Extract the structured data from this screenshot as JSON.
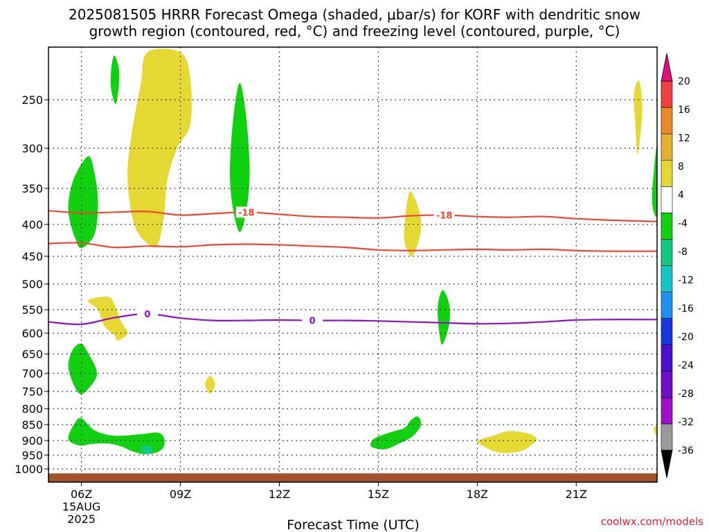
{
  "chart_data": {
    "type": "time-height cross section",
    "title_line1": "2025081505 HRRR Forecast Omega (shaded, μbar/s) for KORF with dendritic snow",
    "title_line2": "growth region (contoured, red, °C) and freezing level (contoured, purple, °C)",
    "xlabel": "Forecast Time (UTC)",
    "credit": "coolwx.com/models",
    "x_ticks": [
      {
        "hour": 6,
        "label": "06Z",
        "sub1": "15AUG",
        "sub2": "2025"
      },
      {
        "hour": 9,
        "label": "09Z"
      },
      {
        "hour": 12,
        "label": "12Z"
      },
      {
        "hour": 15,
        "label": "15Z"
      },
      {
        "hour": 18,
        "label": "18Z"
      },
      {
        "hour": 21,
        "label": "21Z"
      }
    ],
    "x_range": [
      5.0,
      23.45
    ],
    "y_ticks": [
      250,
      300,
      350,
      400,
      450,
      500,
      550,
      600,
      650,
      700,
      750,
      800,
      850,
      900,
      950,
      1000
    ],
    "y_range": [
      200,
      1030
    ],
    "colorbar": {
      "labels": [
        "20",
        "16",
        "12",
        "8",
        "4",
        "-4",
        "-8",
        "-12",
        "-16",
        "-20",
        "-24",
        "-28",
        "-32",
        "-36"
      ],
      "colors": [
        "#e8e8e8",
        "#9a9a9a",
        "#a010c8",
        "#7010c8",
        "#5010d0",
        "#1838e0",
        "#2090f0",
        "#10c8c8",
        "#10c880",
        "#10d010",
        "#ffffff",
        "#e6d832",
        "#e6b030",
        "#e88a28",
        "#f04040"
      ],
      "top_color": "#e0107a",
      "bottom_color": "#000000"
    },
    "dgz_contours": [
      {
        "level": -18,
        "label": "-18",
        "color": "#ee4433",
        "points": [
          [
            5.0,
            381
          ],
          [
            6.0,
            384
          ],
          [
            7.0,
            383
          ],
          [
            8.0,
            382
          ],
          [
            9.0,
            387
          ],
          [
            10.0,
            385
          ],
          [
            11.0,
            383
          ],
          [
            12.0,
            386
          ],
          [
            13.0,
            389
          ],
          [
            14.0,
            390
          ],
          [
            15.0,
            391
          ],
          [
            16.0,
            388
          ],
          [
            17.0,
            387
          ],
          [
            18.0,
            389
          ],
          [
            19.0,
            390
          ],
          [
            20.0,
            389
          ],
          [
            21.0,
            392
          ],
          [
            22.0,
            394
          ],
          [
            23.45,
            396
          ]
        ],
        "label_positions": [
          11.0,
          17.0
        ]
      },
      {
        "level": -12,
        "label": "",
        "color": "#ee4433",
        "points": [
          [
            5.0,
            430
          ],
          [
            6.0,
            429
          ],
          [
            7.0,
            436
          ],
          [
            8.0,
            434
          ],
          [
            9.0,
            435
          ],
          [
            10.0,
            432
          ],
          [
            11.0,
            431
          ],
          [
            12.0,
            432
          ],
          [
            13.0,
            434
          ],
          [
            14.0,
            436
          ],
          [
            15.0,
            440
          ],
          [
            16.0,
            441
          ],
          [
            17.0,
            440
          ],
          [
            18.0,
            439
          ],
          [
            19.0,
            440
          ],
          [
            20.0,
            439
          ],
          [
            21.0,
            441
          ],
          [
            22.0,
            442
          ],
          [
            23.45,
            442
          ]
        ],
        "label_positions": []
      }
    ],
    "freezing_level": {
      "level": 0,
      "label": "0",
      "color": "#9010c0",
      "points": [
        [
          5.0,
          576
        ],
        [
          6.0,
          581
        ],
        [
          7.0,
          567
        ],
        [
          8.0,
          559
        ],
        [
          9.0,
          568
        ],
        [
          10.0,
          573
        ],
        [
          11.0,
          573
        ],
        [
          12.0,
          572
        ],
        [
          13.0,
          573
        ],
        [
          14.0,
          573
        ],
        [
          15.0,
          574
        ],
        [
          16.0,
          576
        ],
        [
          17.0,
          578
        ],
        [
          18.0,
          580
        ],
        [
          19.0,
          579
        ],
        [
          20.0,
          576
        ],
        [
          21.0,
          572
        ],
        [
          22.0,
          571
        ],
        [
          23.45,
          571
        ]
      ],
      "label_positions": [
        8.0,
        13.0
      ]
    },
    "omega_regions": [
      {
        "class": "4",
        "points": [
          [
            8.0,
            430
          ],
          [
            7.6,
            400
          ],
          [
            7.4,
            340
          ],
          [
            7.5,
            290
          ],
          [
            7.8,
            235
          ],
          [
            8.0,
            205
          ],
          [
            9.0,
            205
          ],
          [
            9.3,
            230
          ],
          [
            9.3,
            275
          ],
          [
            8.9,
            300
          ],
          [
            8.6,
            340
          ],
          [
            8.5,
            390
          ],
          [
            8.3,
            432
          ]
        ]
      },
      {
        "class": "4",
        "points": [
          [
            6.2,
            532
          ],
          [
            6.8,
            525
          ],
          [
            7.0,
            540
          ],
          [
            7.2,
            575
          ],
          [
            7.4,
            600
          ],
          [
            7.1,
            618
          ],
          [
            7.0,
            605
          ],
          [
            6.7,
            585
          ],
          [
            6.5,
            550
          ]
        ]
      },
      {
        "class": "4",
        "points": [
          [
            9.9,
            707
          ],
          [
            10.05,
            730
          ],
          [
            9.9,
            756
          ],
          [
            9.75,
            730
          ]
        ]
      },
      {
        "class": "4",
        "points": [
          [
            15.8,
            398
          ],
          [
            15.9,
            362
          ],
          [
            16.0,
            355
          ],
          [
            16.2,
            375
          ],
          [
            16.3,
            400
          ],
          [
            16.2,
            430
          ],
          [
            16.0,
            450
          ],
          [
            15.8,
            428
          ]
        ]
      },
      {
        "class": "4",
        "points": [
          [
            18.0,
            902
          ],
          [
            18.5,
            884
          ],
          [
            19.0,
            870
          ],
          [
            19.6,
            880
          ],
          [
            19.8,
            895
          ],
          [
            19.7,
            910
          ],
          [
            19.4,
            933
          ],
          [
            19.0,
            942
          ],
          [
            18.6,
            940
          ],
          [
            18.2,
            920
          ]
        ]
      },
      {
        "class": "4",
        "points": [
          [
            22.75,
            245
          ],
          [
            22.9,
            232
          ],
          [
            23.0,
            255
          ],
          [
            22.95,
            285
          ],
          [
            22.85,
            307
          ],
          [
            22.8,
            280
          ]
        ]
      },
      {
        "class": "4",
        "points": [
          [
            23.35,
            860
          ],
          [
            23.45,
            855
          ],
          [
            23.45,
            885
          ],
          [
            23.38,
            875
          ]
        ]
      },
      {
        "class": "-4",
        "points": [
          [
            6.2,
            310
          ],
          [
            6.4,
            332
          ],
          [
            6.5,
            370
          ],
          [
            6.4,
            415
          ],
          [
            6.0,
            437
          ],
          [
            5.8,
            420
          ],
          [
            5.6,
            380
          ],
          [
            5.75,
            340
          ]
        ]
      },
      {
        "class": "-4",
        "points": [
          [
            6.0,
            625
          ],
          [
            6.2,
            648
          ],
          [
            6.45,
            690
          ],
          [
            6.4,
            720
          ],
          [
            6.0,
            758
          ],
          [
            5.75,
            728
          ],
          [
            5.6,
            680
          ],
          [
            5.75,
            638
          ]
        ]
      },
      {
        "class": "-4",
        "points": [
          [
            10.8,
            234
          ],
          [
            11.0,
            270
          ],
          [
            11.1,
            330
          ],
          [
            11.0,
            380
          ],
          [
            10.8,
            412
          ],
          [
            10.6,
            380
          ],
          [
            10.5,
            330
          ],
          [
            10.6,
            270
          ]
        ]
      },
      {
        "class": "-4",
        "points": [
          [
            5.8,
            845
          ],
          [
            6.0,
            830
          ],
          [
            6.4,
            868
          ],
          [
            7.0,
            885
          ],
          [
            7.8,
            880
          ],
          [
            8.3,
            875
          ],
          [
            8.5,
            890
          ],
          [
            8.5,
            920
          ],
          [
            8.3,
            940
          ],
          [
            7.9,
            947
          ],
          [
            7.5,
            935
          ],
          [
            7.2,
            920
          ],
          [
            6.8,
            910
          ],
          [
            6.3,
            912
          ],
          [
            5.95,
            917
          ],
          [
            5.6,
            895
          ]
        ]
      },
      {
        "class": "-4",
        "points": [
          [
            15.0,
            887
          ],
          [
            15.5,
            870
          ],
          [
            15.8,
            860
          ],
          [
            16.0,
            835
          ],
          [
            16.2,
            825
          ],
          [
            16.3,
            848
          ],
          [
            16.2,
            868
          ],
          [
            16.0,
            890
          ],
          [
            15.6,
            912
          ],
          [
            15.2,
            930
          ],
          [
            14.8,
            922
          ],
          [
            14.8,
            902
          ]
        ]
      },
      {
        "class": "-4",
        "points": [
          [
            16.95,
            512
          ],
          [
            17.15,
            540
          ],
          [
            17.15,
            580
          ],
          [
            16.95,
            627
          ],
          [
            16.85,
            600
          ],
          [
            16.8,
            545
          ]
        ]
      },
      {
        "class": "-4",
        "points": [
          [
            23.45,
            300
          ],
          [
            23.45,
            385
          ],
          [
            23.3,
            370
          ],
          [
            23.35,
            330
          ]
        ]
      },
      {
        "class": "-4",
        "points": [
          [
            7.0,
            208
          ],
          [
            7.15,
            225
          ],
          [
            7.05,
            254
          ],
          [
            6.9,
            240
          ],
          [
            6.9,
            222
          ]
        ]
      },
      {
        "class": "-8",
        "points": [
          [
            7.8,
            925
          ],
          [
            7.9,
            915
          ],
          [
            8.1,
            920
          ],
          [
            8.15,
            935
          ],
          [
            8.0,
            947
          ],
          [
            7.85,
            940
          ]
        ]
      }
    ],
    "ground": {
      "from_pressure": 1010,
      "color": "#a0522d"
    }
  }
}
